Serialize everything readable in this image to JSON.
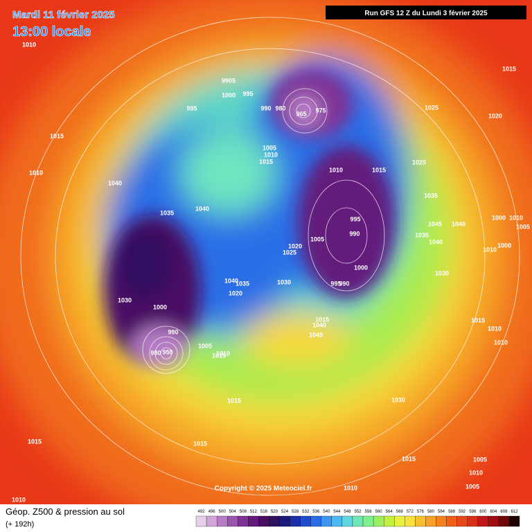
{
  "header": {
    "date": "Mardi 11 février 2025",
    "time": "13:00 locale",
    "run": "Run GFS 12 Z du Lundi 3 février 2025"
  },
  "copyright": "Copyright © 2025 Meteociel.fr",
  "legend": {
    "title": "Géop. Z500 & pression au sol",
    "subtitle": "(+ 192h)",
    "levels": [
      492,
      496,
      500,
      504,
      508,
      512,
      516,
      520,
      524,
      528,
      532,
      536,
      540,
      544,
      548,
      552,
      556,
      560,
      564,
      568,
      572,
      576,
      580,
      584,
      588,
      592,
      596,
      600,
      604,
      608,
      612
    ],
    "colors": [
      "#e6cfe9",
      "#d2a6d8",
      "#b57cc4",
      "#9a55ad",
      "#7f3396",
      "#641a7c",
      "#4a0d63",
      "#301060",
      "#1a1a7a",
      "#1c2fa6",
      "#1f4ccc",
      "#2a6ee6",
      "#3c96f0",
      "#4cb8f0",
      "#5fd6e0",
      "#6ee6b8",
      "#7ef08c",
      "#9cf060",
      "#c4f040",
      "#e8f040",
      "#f8e040",
      "#f8c030",
      "#f8a028",
      "#f48020",
      "#f06018",
      "#e84818",
      "#d83018",
      "#c01818",
      "#a00c10",
      "#700808",
      "#200000"
    ]
  },
  "pressure_labels": [
    1010,
    1015,
    9905,
    995,
    1000,
    995,
    990,
    980,
    965,
    975,
    1025,
    1020,
    1015,
    1005,
    1010,
    1015,
    1010,
    1015,
    1025,
    1010,
    1040,
    1035,
    1040,
    1035,
    1000,
    1010,
    1045,
    1040,
    1005,
    995,
    990,
    1035,
    1040,
    1020,
    1005,
    1025,
    1000,
    1010,
    1000,
    1030,
    1030,
    995,
    990,
    1040,
    1035,
    1020,
    1030,
    1000,
    1015,
    1040,
    1015,
    1010,
    990,
    1045,
    1010,
    1005,
    980,
    950,
    1010,
    1015,
    1030,
    1015,
    1015,
    1015,
    1015,
    1005,
    1010,
    1005,
    1010,
    1010
  ]
}
